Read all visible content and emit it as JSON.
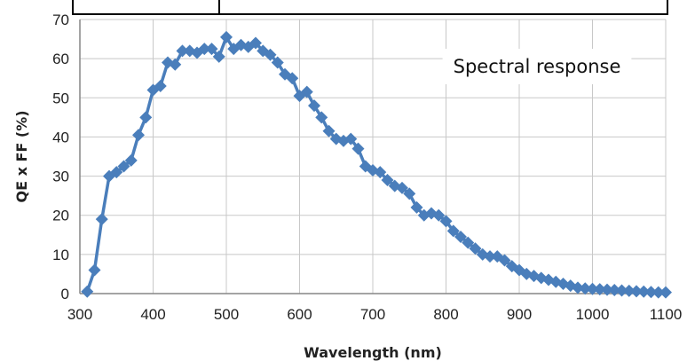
{
  "chart_data": {
    "type": "line",
    "title": "",
    "annotation": "Spectral response",
    "xlabel": "Wavelength (nm)",
    "ylabel": "QE x FF (%)",
    "xlim": [
      300,
      1100
    ],
    "ylim": [
      0,
      70
    ],
    "xticks": [
      "300",
      "400",
      "500",
      "600",
      "700",
      "800",
      "900",
      "1000",
      "1100"
    ],
    "yticks": [
      "0",
      "10",
      "20",
      "30",
      "40",
      "50",
      "60",
      "70"
    ],
    "grid": true,
    "legend": "none",
    "series": [
      {
        "color": "#4a7ebb",
        "marker": "diamond",
        "x": [
          310,
          320,
          330,
          340,
          350,
          360,
          370,
          380,
          390,
          400,
          410,
          420,
          430,
          440,
          450,
          460,
          470,
          480,
          490,
          500,
          510,
          520,
          530,
          540,
          550,
          560,
          570,
          580,
          590,
          600,
          610,
          620,
          630,
          640,
          650,
          660,
          670,
          680,
          690,
          700,
          710,
          720,
          730,
          740,
          750,
          760,
          770,
          780,
          790,
          800,
          810,
          820,
          830,
          840,
          850,
          860,
          870,
          880,
          890,
          900,
          910,
          920,
          930,
          940,
          950,
          960,
          970,
          980,
          990,
          1000,
          1010,
          1020,
          1030,
          1040,
          1050,
          1060,
          1070,
          1080,
          1090,
          1100
        ],
        "y": [
          0.5,
          6,
          19,
          30,
          31,
          32.5,
          34,
          40.5,
          45,
          52,
          53,
          59,
          58.5,
          62,
          62,
          61.5,
          62.5,
          62.5,
          60.5,
          65.5,
          62.5,
          63.5,
          63,
          64,
          62,
          61,
          59,
          56,
          55,
          50.5,
          51.5,
          48,
          45,
          41.5,
          39.5,
          39,
          39.5,
          37,
          32.5,
          31.5,
          31,
          29,
          27.5,
          27,
          25.5,
          22,
          20,
          20.5,
          20,
          18.5,
          16,
          14.5,
          13,
          11.5,
          10,
          9.5,
          9.5,
          8.5,
          7,
          6,
          5,
          4.5,
          4,
          3.5,
          3,
          2.5,
          2,
          1.5,
          1.3,
          1.2,
          1.1,
          1,
          0.9,
          0.8,
          0.7,
          0.6,
          0.5,
          0.4,
          0.3,
          0.3
        ]
      }
    ]
  }
}
